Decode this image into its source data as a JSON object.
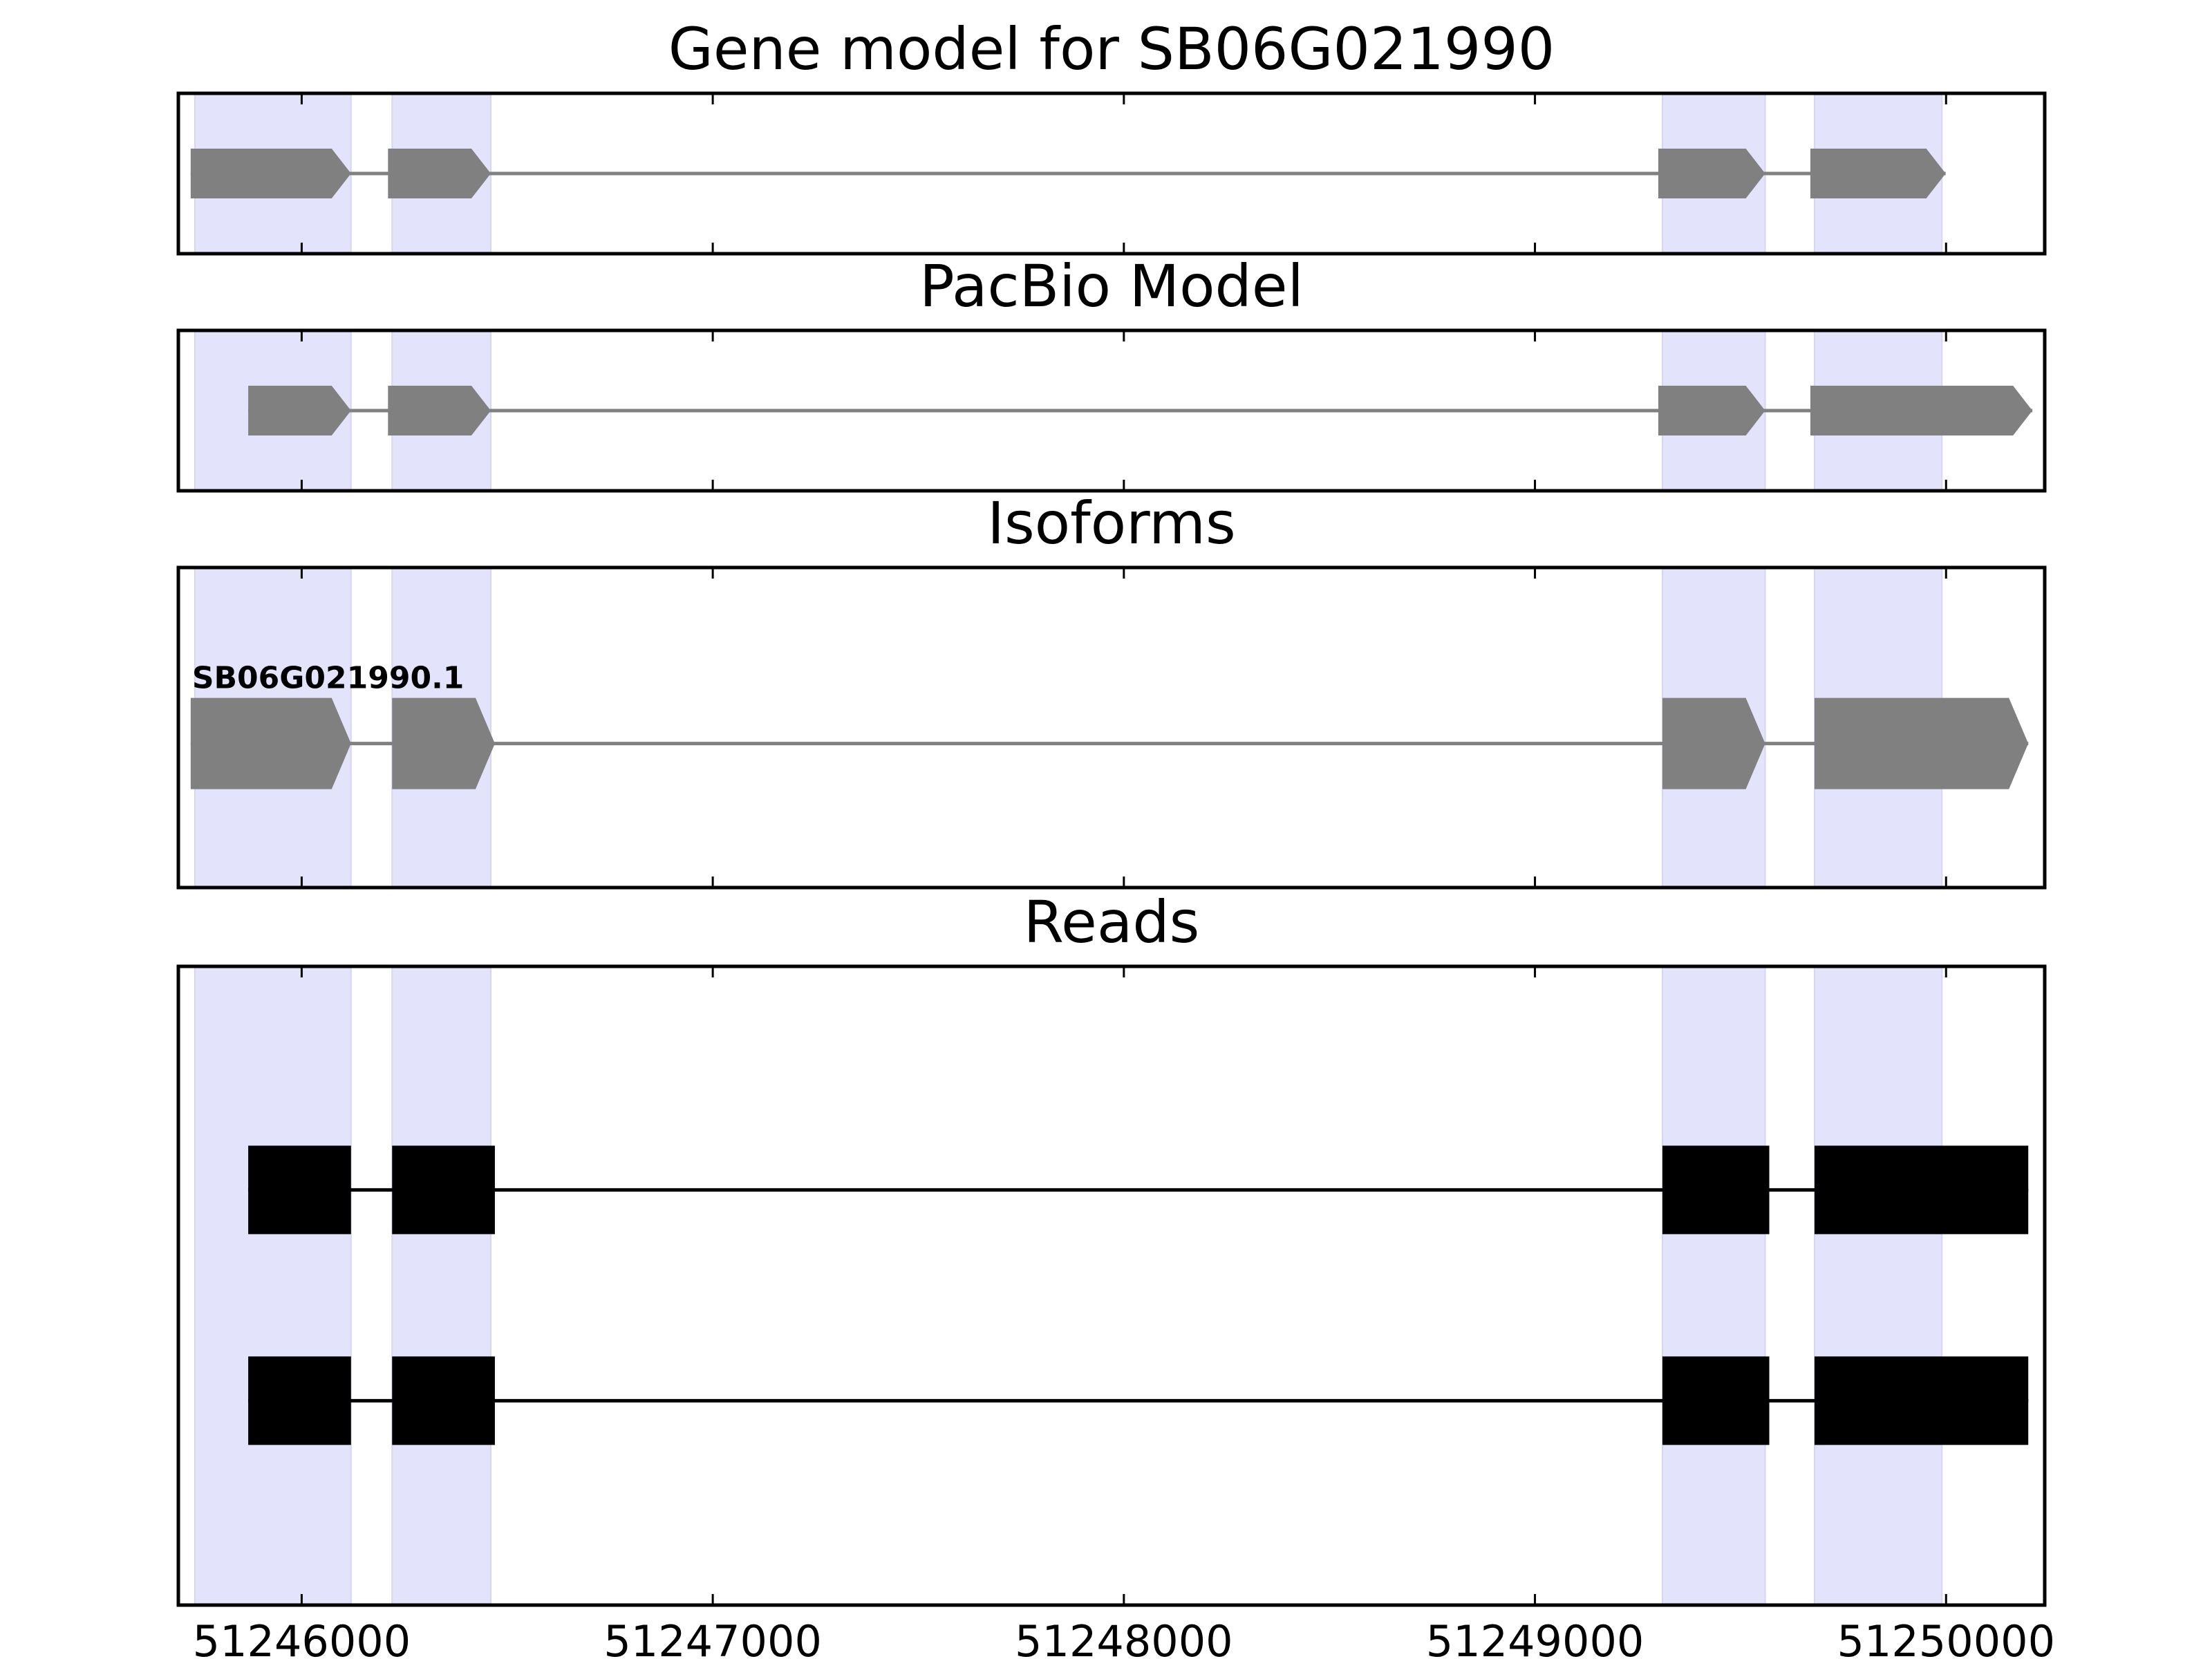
{
  "chart_data": {
    "type": "gene-track",
    "xticks": [
      51246000,
      51247000,
      51248000,
      51249000,
      51250000
    ],
    "xtick_labels": [
      "51246000",
      "51247000",
      "51248000",
      "51249000",
      "51250000"
    ],
    "xlim": [
      51245700,
      51250240
    ],
    "highlight_color": "#e3e3fb",
    "feature_color": "#808080",
    "read_color": "#000000",
    "highlight_regions": [
      [
        51245740,
        51246120
      ],
      [
        51246220,
        51246460
      ],
      [
        51249310,
        51249560
      ],
      [
        51249680,
        51249990
      ]
    ],
    "panels": [
      {
        "title": "Gene model for SB06G021990",
        "style": "arrow",
        "tracks": [
          {
            "label": "",
            "exons": [
              [
                51245730,
                51246120
              ],
              [
                51246210,
                51246460
              ],
              [
                51249300,
                51249560
              ],
              [
                51249670,
                51249999
              ]
            ]
          }
        ]
      },
      {
        "title": "PacBio Model",
        "style": "arrow",
        "tracks": [
          {
            "label": "",
            "exons": [
              [
                51245870,
                51246120
              ],
              [
                51246210,
                51246460
              ],
              [
                51249300,
                51249560
              ],
              [
                51249670,
                51250210
              ]
            ]
          }
        ]
      },
      {
        "title": "Isoforms",
        "style": "arrow",
        "tracks": [
          {
            "label": "SB06G021990.1",
            "exons": [
              [
                51245730,
                51246120
              ],
              [
                51246220,
                51246470
              ],
              [
                51249310,
                51249560
              ],
              [
                51249680,
                51250200
              ]
            ]
          }
        ]
      },
      {
        "title": "Reads",
        "style": "block",
        "tracks": [
          {
            "label": "",
            "exons": [
              [
                51245870,
                51246120
              ],
              [
                51246220,
                51246470
              ],
              [
                51249310,
                51249570
              ],
              [
                51249680,
                51250200
              ]
            ]
          },
          {
            "label": "",
            "exons": [
              [
                51245870,
                51246120
              ],
              [
                51246220,
                51246470
              ],
              [
                51249310,
                51249570
              ],
              [
                51249680,
                51250200
              ]
            ]
          }
        ]
      }
    ]
  }
}
